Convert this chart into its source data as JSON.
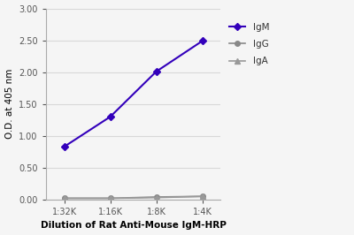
{
  "x_labels": [
    "1:32K",
    "1:16K",
    "1:8K",
    "1:4K"
  ],
  "x_positions": [
    0,
    1,
    2,
    3
  ],
  "IgM_values": [
    0.83,
    1.3,
    2.01,
    2.49
  ],
  "IgG_values": [
    0.02,
    0.02,
    0.04,
    0.05
  ],
  "IgA_values": [
    0.02,
    0.02,
    0.03,
    0.05
  ],
  "IgM_color": "#3300bb",
  "IgG_color": "#888888",
  "IgA_color": "#999999",
  "IgM_marker": "D",
  "IgG_marker": "o",
  "IgA_marker": "^",
  "xlabel": "Dilution of Rat Anti-Mouse IgM-HRP",
  "ylabel": "O.D. at 405 nm",
  "ylim": [
    0.0,
    3.0
  ],
  "yticks": [
    0.0,
    0.5,
    1.0,
    1.5,
    2.0,
    2.5,
    3.0
  ],
  "tick_fontsize": 7,
  "axis_label_fontsize": 7.5,
  "legend_fontsize": 7.5,
  "background_color": "#f5f5f5",
  "plot_bg_color": "#f5f5f5",
  "grid_color": "#d8d8d8"
}
